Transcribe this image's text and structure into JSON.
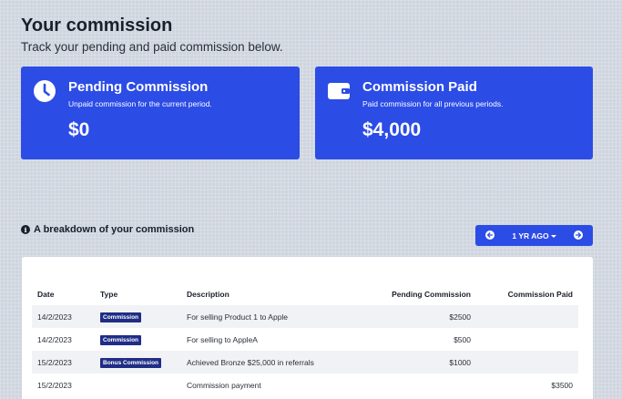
{
  "header": {
    "title": "Your commission",
    "subtitle": "Track your pending and paid commission below."
  },
  "cards": {
    "pending": {
      "title": "Pending Commission",
      "description": "Unpaid commission for the current period.",
      "amount": "$0",
      "icon": "clock-icon"
    },
    "paid": {
      "title": "Commission Paid",
      "description": "Paid commission for all previous periods.",
      "amount": "$4,000",
      "icon": "wallet-icon"
    }
  },
  "breakdown": {
    "heading": "A breakdown of your commission",
    "period_label": "1 YR AGO",
    "columns": [
      "Date",
      "Type",
      "Description",
      "Pending Commission",
      "Commission Paid"
    ],
    "rows": [
      {
        "date": "14/2/2023",
        "type": "Commission",
        "description": "For selling Product 1 to Apple",
        "pending": "$2500",
        "paid": ""
      },
      {
        "date": "14/2/2023",
        "type": "Commission",
        "description": "For selling to AppleA",
        "pending": "$500",
        "paid": ""
      },
      {
        "date": "15/2/2023",
        "type": "Bonus Commission",
        "description": "Achieved Bronze $25,000 in referrals",
        "pending": "$1000",
        "paid": ""
      },
      {
        "date": "15/2/2023",
        "type": "",
        "description": "Commission payment",
        "pending": "",
        "paid": "$3500"
      }
    ]
  },
  "colors": {
    "accent": "#2c4ce6",
    "badge": "#1f2d86",
    "background": "#cfd5df"
  }
}
